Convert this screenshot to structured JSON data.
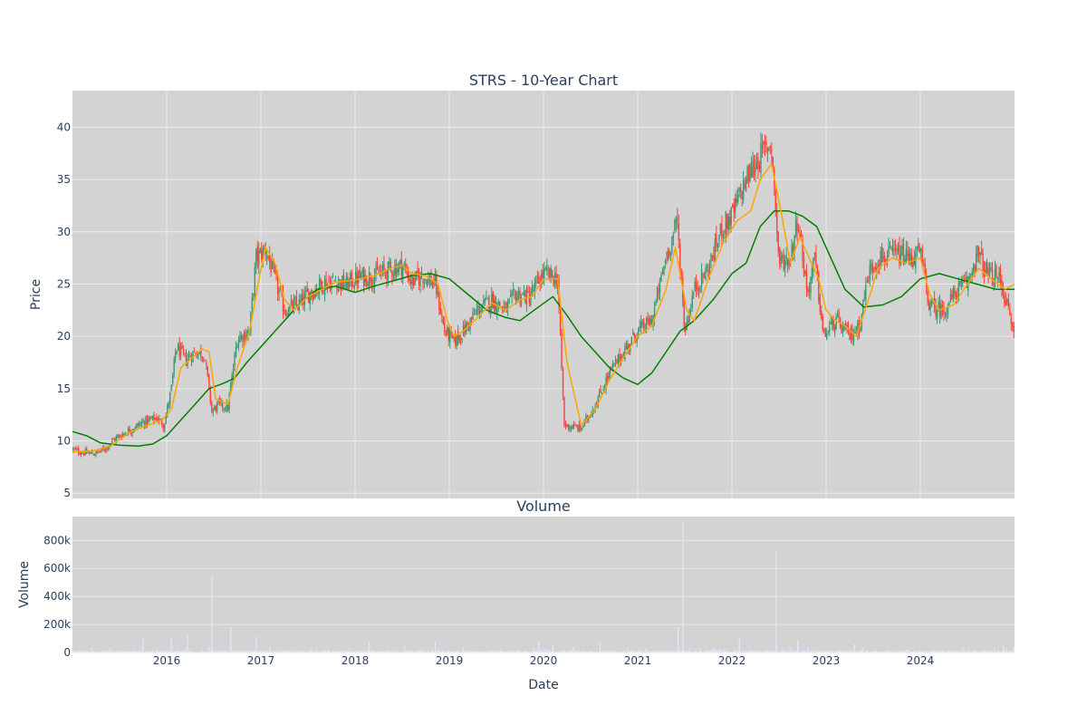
{
  "chart_data": [
    {
      "type": "candlestick",
      "title": "STRS - 10-Year Chart",
      "ylabel": "Price",
      "xlabel": "",
      "xlim": [
        2015.0,
        2025.0
      ],
      "ylim": [
        4.5,
        43.5
      ],
      "y_ticks": [
        5,
        10,
        15,
        20,
        25,
        30,
        35,
        40
      ],
      "grid": true,
      "background": "#d3d3d3",
      "grid_color": "#ebebeb",
      "colors": {
        "increasing": "#3d9970",
        "decreasing": "#ff4136",
        "short_ma": "#ffa500",
        "long_ma": "#008000"
      },
      "close_path": [
        [
          2015.0,
          9.2
        ],
        [
          2015.1,
          8.9
        ],
        [
          2015.25,
          8.8
        ],
        [
          2015.35,
          9.3
        ],
        [
          2015.45,
          10.2
        ],
        [
          2015.6,
          11.0
        ],
        [
          2015.75,
          11.8
        ],
        [
          2015.9,
          12.2
        ],
        [
          2015.97,
          11.5
        ],
        [
          2016.05,
          15.0
        ],
        [
          2016.1,
          19.0
        ],
        [
          2016.2,
          17.8
        ],
        [
          2016.3,
          18.5
        ],
        [
          2016.4,
          18.3
        ],
        [
          2016.48,
          12.8
        ],
        [
          2016.55,
          13.5
        ],
        [
          2016.65,
          13.2
        ],
        [
          2016.75,
          19.8
        ],
        [
          2016.88,
          20.5
        ],
        [
          2016.95,
          27.5
        ],
        [
          2017.05,
          28.3
        ],
        [
          2017.15,
          25.5
        ],
        [
          2017.25,
          22.5
        ],
        [
          2017.4,
          23.0
        ],
        [
          2017.5,
          24.0
        ],
        [
          2017.65,
          25.0
        ],
        [
          2017.8,
          25.3
        ],
        [
          2017.9,
          24.9
        ],
        [
          2018.0,
          25.5
        ],
        [
          2018.2,
          25.8
        ],
        [
          2018.35,
          26.3
        ],
        [
          2018.5,
          26.8
        ],
        [
          2018.6,
          25.2
        ],
        [
          2018.72,
          25.8
        ],
        [
          2018.85,
          25.0
        ],
        [
          2018.95,
          20.5
        ],
        [
          2019.05,
          19.5
        ],
        [
          2019.15,
          20.5
        ],
        [
          2019.3,
          22.5
        ],
        [
          2019.45,
          23.5
        ],
        [
          2019.6,
          22.5
        ],
        [
          2019.7,
          24.0
        ],
        [
          2019.85,
          23.8
        ],
        [
          2020.0,
          26.0
        ],
        [
          2020.15,
          25.5
        ],
        [
          2020.22,
          11.5
        ],
        [
          2020.4,
          11.2
        ],
        [
          2020.55,
          13.5
        ],
        [
          2020.7,
          16.5
        ],
        [
          2020.85,
          18.5
        ],
        [
          2021.0,
          20.5
        ],
        [
          2021.15,
          21.5
        ],
        [
          2021.3,
          27.5
        ],
        [
          2021.42,
          31.0
        ],
        [
          2021.5,
          20.5
        ],
        [
          2021.6,
          24.5
        ],
        [
          2021.75,
          26.5
        ],
        [
          2021.9,
          30.5
        ],
        [
          2022.0,
          31.5
        ],
        [
          2022.15,
          35.0
        ],
        [
          2022.28,
          37.0
        ],
        [
          2022.42,
          38.5
        ],
        [
          2022.5,
          27.0
        ],
        [
          2022.62,
          27.5
        ],
        [
          2022.7,
          31.5
        ],
        [
          2022.8,
          24.0
        ],
        [
          2022.88,
          27.5
        ],
        [
          2022.97,
          20.0
        ],
        [
          2023.1,
          21.5
        ],
        [
          2023.25,
          20.0
        ],
        [
          2023.35,
          21.0
        ],
        [
          2023.45,
          26.0
        ],
        [
          2023.55,
          27.5
        ],
        [
          2023.75,
          27.8
        ],
        [
          2023.9,
          27.5
        ],
        [
          2024.0,
          28.0
        ],
        [
          2024.1,
          22.8
        ],
        [
          2024.25,
          22.5
        ],
        [
          2024.4,
          24.5
        ],
        [
          2024.5,
          25.0
        ],
        [
          2024.6,
          28.0
        ],
        [
          2024.72,
          25.8
        ],
        [
          2024.85,
          25.5
        ],
        [
          2025.0,
          20.0
        ]
      ],
      "short_ma": [
        [
          2015.0,
          9.0
        ],
        [
          2015.2,
          9.0
        ],
        [
          2015.4,
          9.5
        ],
        [
          2015.6,
          10.8
        ],
        [
          2015.8,
          11.5
        ],
        [
          2015.95,
          12.0
        ],
        [
          2016.05,
          13.0
        ],
        [
          2016.15,
          17.0
        ],
        [
          2016.3,
          18.2
        ],
        [
          2016.38,
          18.8
        ],
        [
          2016.45,
          18.5
        ],
        [
          2016.52,
          14.0
        ],
        [
          2016.65,
          13.5
        ],
        [
          2016.75,
          17.0
        ],
        [
          2016.88,
          20.5
        ],
        [
          2016.98,
          25.5
        ],
        [
          2017.05,
          28.5
        ],
        [
          2017.15,
          27.0
        ],
        [
          2017.25,
          23.5
        ],
        [
          2017.35,
          22.5
        ],
        [
          2017.5,
          23.8
        ],
        [
          2017.65,
          24.5
        ],
        [
          2017.8,
          25.2
        ],
        [
          2018.0,
          25.4
        ],
        [
          2018.2,
          25.8
        ],
        [
          2018.38,
          26.5
        ],
        [
          2018.5,
          26.8
        ],
        [
          2018.6,
          26.0
        ],
        [
          2018.75,
          25.8
        ],
        [
          2018.88,
          25.0
        ],
        [
          2018.98,
          21.5
        ],
        [
          2019.05,
          20.0
        ],
        [
          2019.15,
          20.5
        ],
        [
          2019.3,
          21.8
        ],
        [
          2019.45,
          23.2
        ],
        [
          2019.6,
          22.5
        ],
        [
          2019.75,
          23.5
        ],
        [
          2019.88,
          23.8
        ],
        [
          2020.0,
          25.5
        ],
        [
          2020.15,
          25.5
        ],
        [
          2020.25,
          17.5
        ],
        [
          2020.4,
          11.5
        ],
        [
          2020.55,
          13.0
        ],
        [
          2020.7,
          15.8
        ],
        [
          2020.85,
          18.0
        ],
        [
          2021.0,
          20.0
        ],
        [
          2021.15,
          21.0
        ],
        [
          2021.3,
          24.5
        ],
        [
          2021.4,
          28.5
        ],
        [
          2021.52,
          22.5
        ],
        [
          2021.6,
          21.5
        ],
        [
          2021.75,
          25.5
        ],
        [
          2021.9,
          28.8
        ],
        [
          2022.05,
          31.0
        ],
        [
          2022.2,
          32.0
        ],
        [
          2022.3,
          35.0
        ],
        [
          2022.42,
          36.5
        ],
        [
          2022.52,
          32.0
        ],
        [
          2022.62,
          27.0
        ],
        [
          2022.72,
          29.5
        ],
        [
          2022.82,
          27.5
        ],
        [
          2022.92,
          25.5
        ],
        [
          2023.0,
          22.5
        ],
        [
          2023.1,
          21.5
        ],
        [
          2023.2,
          21.0
        ],
        [
          2023.32,
          20.0
        ],
        [
          2023.45,
          23.5
        ],
        [
          2023.55,
          26.5
        ],
        [
          2023.7,
          27.5
        ],
        [
          2023.85,
          27.0
        ],
        [
          2024.0,
          27.5
        ],
        [
          2024.1,
          24.0
        ],
        [
          2024.2,
          22.5
        ],
        [
          2024.35,
          23.0
        ],
        [
          2024.5,
          25.0
        ],
        [
          2024.62,
          26.5
        ],
        [
          2024.75,
          25.5
        ],
        [
          2024.9,
          24.5
        ],
        [
          2025.0,
          25.0
        ]
      ],
      "long_ma": [
        [
          2015.0,
          10.9
        ],
        [
          2015.15,
          10.5
        ],
        [
          2015.3,
          9.8
        ],
        [
          2015.5,
          9.6
        ],
        [
          2015.7,
          9.5
        ],
        [
          2015.85,
          9.7
        ],
        [
          2016.0,
          10.5
        ],
        [
          2016.15,
          12.0
        ],
        [
          2016.3,
          13.5
        ],
        [
          2016.45,
          15.0
        ],
        [
          2016.6,
          15.5
        ],
        [
          2016.72,
          16.0
        ],
        [
          2016.85,
          17.5
        ],
        [
          2017.0,
          19.0
        ],
        [
          2017.2,
          21.0
        ],
        [
          2017.4,
          23.0
        ],
        [
          2017.6,
          24.5
        ],
        [
          2017.8,
          24.8
        ],
        [
          2018.0,
          24.2
        ],
        [
          2018.2,
          24.8
        ],
        [
          2018.4,
          25.3
        ],
        [
          2018.6,
          25.8
        ],
        [
          2018.8,
          26.0
        ],
        [
          2019.0,
          25.5
        ],
        [
          2019.2,
          24.0
        ],
        [
          2019.4,
          22.5
        ],
        [
          2019.6,
          21.8
        ],
        [
          2019.75,
          21.5
        ],
        [
          2019.9,
          22.5
        ],
        [
          2020.1,
          23.8
        ],
        [
          2020.25,
          22.0
        ],
        [
          2020.4,
          20.0
        ],
        [
          2020.55,
          18.5
        ],
        [
          2020.7,
          17.0
        ],
        [
          2020.85,
          16.0
        ],
        [
          2021.0,
          15.4
        ],
        [
          2021.15,
          16.5
        ],
        [
          2021.3,
          18.5
        ],
        [
          2021.45,
          20.5
        ],
        [
          2021.6,
          21.5
        ],
        [
          2021.8,
          23.5
        ],
        [
          2022.0,
          26.0
        ],
        [
          2022.15,
          27.0
        ],
        [
          2022.3,
          30.5
        ],
        [
          2022.45,
          32.0
        ],
        [
          2022.6,
          32.0
        ],
        [
          2022.75,
          31.5
        ],
        [
          2022.9,
          30.5
        ],
        [
          2023.0,
          28.5
        ],
        [
          2023.2,
          24.5
        ],
        [
          2023.4,
          22.8
        ],
        [
          2023.6,
          23.0
        ],
        [
          2023.8,
          23.8
        ],
        [
          2024.0,
          25.5
        ],
        [
          2024.2,
          26.0
        ],
        [
          2024.4,
          25.5
        ],
        [
          2024.6,
          25.0
        ],
        [
          2024.8,
          24.5
        ],
        [
          2025.0,
          24.5
        ]
      ]
    },
    {
      "type": "bar",
      "title": "Volume",
      "ylabel": "Volume",
      "xlabel": "Date",
      "x_ticks": [
        "2016",
        "2017",
        "2018",
        "2019",
        "2020",
        "2021",
        "2022",
        "2023",
        "2024"
      ],
      "y_ticks": [
        "0",
        "200k",
        "400k",
        "600k",
        "800k"
      ],
      "ylim": [
        0,
        970000
      ],
      "bar_color": "#e6e6fa",
      "spikes": [
        [
          2015.75,
          95000
        ],
        [
          2016.05,
          105000
        ],
        [
          2016.22,
          130000
        ],
        [
          2016.48,
          540000
        ],
        [
          2016.68,
          180000
        ],
        [
          2016.95,
          115000
        ],
        [
          2018.15,
          75000
        ],
        [
          2018.85,
          80000
        ],
        [
          2019.95,
          75000
        ],
        [
          2020.1,
          60000
        ],
        [
          2020.6,
          70000
        ],
        [
          2021.43,
          180000
        ],
        [
          2021.48,
          940000
        ],
        [
          2022.08,
          105000
        ],
        [
          2022.47,
          730000
        ],
        [
          2022.7,
          90000
        ],
        [
          2023.3,
          60000
        ],
        [
          2024.88,
          55000
        ]
      ]
    }
  ]
}
